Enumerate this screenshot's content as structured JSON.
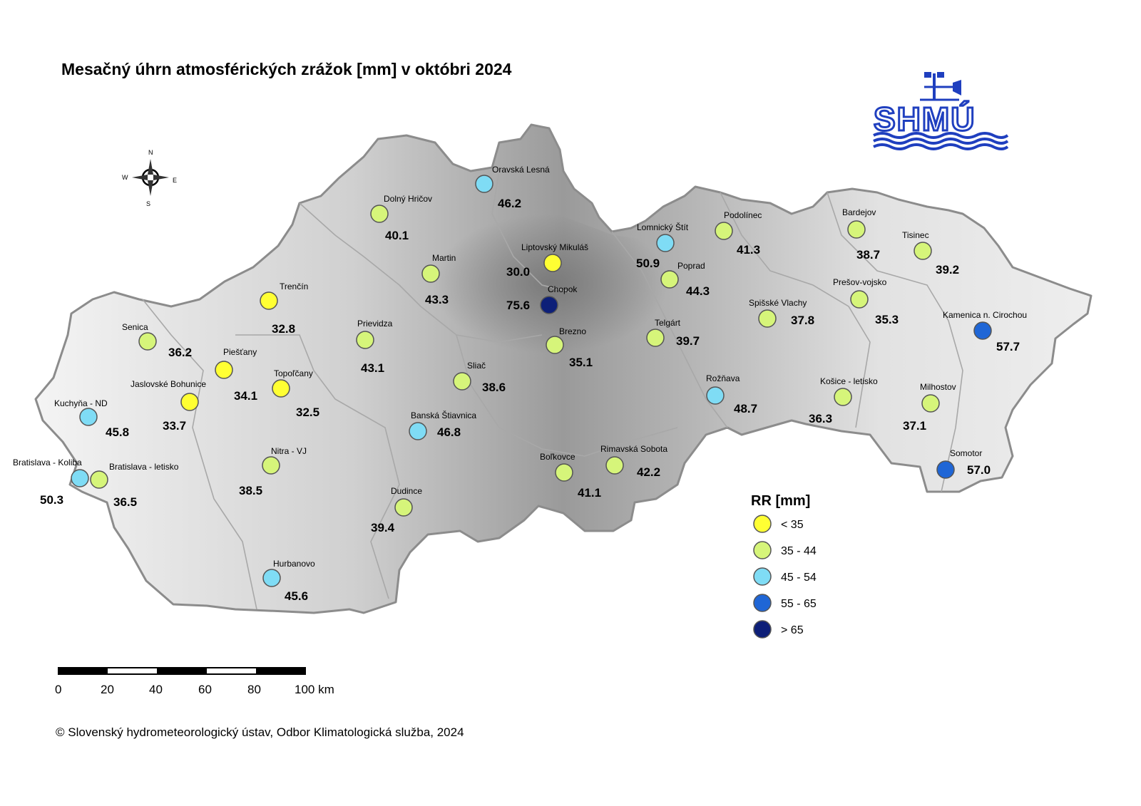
{
  "title": "Mesačný úhrn atmosférických zrážok [mm] v októbri 2024",
  "logo": {
    "text": "SHMÚ",
    "color": "#1f3fbf"
  },
  "compass": {
    "n": "N",
    "s": "S",
    "e": "E",
    "w": "W"
  },
  "legend": {
    "title": "RR [mm]",
    "classes": [
      {
        "label": "< 35",
        "color": "#ffff33"
      },
      {
        "label": "35 - 44",
        "color": "#d6f57a"
      },
      {
        "label": "45 - 54",
        "color": "#7fdcf5"
      },
      {
        "label": "55 - 65",
        "color": "#1f66d6"
      },
      {
        "label": "> 65",
        "color": "#0d1f78"
      }
    ]
  },
  "scalebar": {
    "ticks": [
      "0",
      "20",
      "40",
      "60",
      "80",
      "100 km"
    ]
  },
  "copyright": "© Slovenský hydrometeorologický ústav, Odbor Klimatologická služba, 2024",
  "stations": [
    {
      "name": "Oravská Lesná",
      "value": "46.2",
      "class": 2
    },
    {
      "name": "Dolný Hričov",
      "value": "40.1",
      "class": 1
    },
    {
      "name": "Martin",
      "value": "43.3",
      "class": 1
    },
    {
      "name": "Liptovský Mikuláš",
      "value": "30.0",
      "class": 0
    },
    {
      "name": "Chopok",
      "value": "75.6",
      "class": 4
    },
    {
      "name": "Lomnický Štít",
      "value": "50.9",
      "class": 2
    },
    {
      "name": "Podolínec",
      "value": "41.3",
      "class": 1
    },
    {
      "name": "Poprad",
      "value": "44.3",
      "class": 1
    },
    {
      "name": "Bardejov",
      "value": "38.7",
      "class": 1
    },
    {
      "name": "Tisinec",
      "value": "39.2",
      "class": 1
    },
    {
      "name": "Trenčín",
      "value": "32.8",
      "class": 0
    },
    {
      "name": "Senica",
      "value": "36.2",
      "class": 1
    },
    {
      "name": "Piešťany",
      "value": "34.1",
      "class": 0
    },
    {
      "name": "Prievidza",
      "value": "43.1",
      "class": 1
    },
    {
      "name": "Topoľčany",
      "value": "32.5",
      "class": 0
    },
    {
      "name": "Jaslovské Bohunice",
      "value": "33.7",
      "class": 0
    },
    {
      "name": "Kuchyňa - ND",
      "value": "45.8",
      "class": 2
    },
    {
      "name": "Bratislava - Koliba",
      "value": "50.3",
      "class": 2
    },
    {
      "name": "Bratislava - letisko",
      "value": "36.5",
      "class": 1
    },
    {
      "name": "Nitra - VJ",
      "value": "38.5",
      "class": 1
    },
    {
      "name": "Hurbanovo",
      "value": "45.6",
      "class": 2
    },
    {
      "name": "Sliač",
      "value": "38.6",
      "class": 1
    },
    {
      "name": "Brezno",
      "value": "35.1",
      "class": 1
    },
    {
      "name": "Banská Štiavnica",
      "value": "46.8",
      "class": 2
    },
    {
      "name": "Dudince",
      "value": "39.4",
      "class": 1
    },
    {
      "name": "Boľkovce",
      "value": "41.1",
      "class": 1
    },
    {
      "name": "Rimavská Sobota",
      "value": "42.2",
      "class": 1
    },
    {
      "name": "Telgárt",
      "value": "39.7",
      "class": 1
    },
    {
      "name": "Spišské Vlachy",
      "value": "37.8",
      "class": 1
    },
    {
      "name": "Prešov-vojsko",
      "value": "35.3",
      "class": 1
    },
    {
      "name": "Rožňava",
      "value": "48.7",
      "class": 2
    },
    {
      "name": "Košice - letisko",
      "value": "36.3",
      "class": 1
    },
    {
      "name": "Kamenica n. Cirochou",
      "value": "57.7",
      "class": 3
    },
    {
      "name": "Milhostov",
      "value": "37.1",
      "class": 1
    },
    {
      "name": "Somotor",
      "value": "57.0",
      "class": 3
    }
  ]
}
